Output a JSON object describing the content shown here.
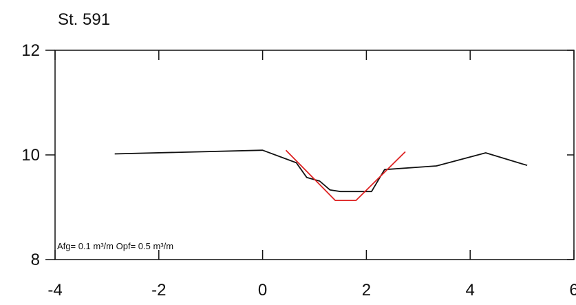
{
  "chart_data": {
    "type": "line",
    "title": "St. 591",
    "xlabel": "",
    "ylabel": "",
    "xlim": [
      -4,
      6
    ],
    "ylim": [
      8,
      12
    ],
    "x_ticks": [
      -4,
      -2,
      0,
      2,
      4,
      6
    ],
    "x_tick_labels": [
      "-4",
      "-2",
      "0",
      "2",
      "4",
      "6"
    ],
    "y_ticks": [
      8,
      10,
      12
    ],
    "y_tick_labels": [
      "8",
      "10",
      "12"
    ],
    "grid": false,
    "annotation": "Afg= 0.1 m³/m  Opf= 0.5 m³/m",
    "series": [
      {
        "color": "#111111",
        "points": [
          [
            -2.85,
            10.02
          ],
          [
            0.0,
            10.09
          ],
          [
            0.65,
            9.85
          ],
          [
            0.85,
            9.57
          ],
          [
            1.1,
            9.5
          ],
          [
            1.3,
            9.33
          ],
          [
            1.5,
            9.3
          ],
          [
            2.1,
            9.3
          ],
          [
            2.35,
            9.72
          ],
          [
            3.35,
            9.79
          ],
          [
            4.3,
            10.04
          ],
          [
            5.1,
            9.8
          ]
        ]
      },
      {
        "color": "#dd2222",
        "points": [
          [
            0.45,
            10.09
          ],
          [
            1.4,
            9.13
          ],
          [
            1.8,
            9.13
          ],
          [
            2.75,
            10.06
          ]
        ]
      }
    ]
  }
}
